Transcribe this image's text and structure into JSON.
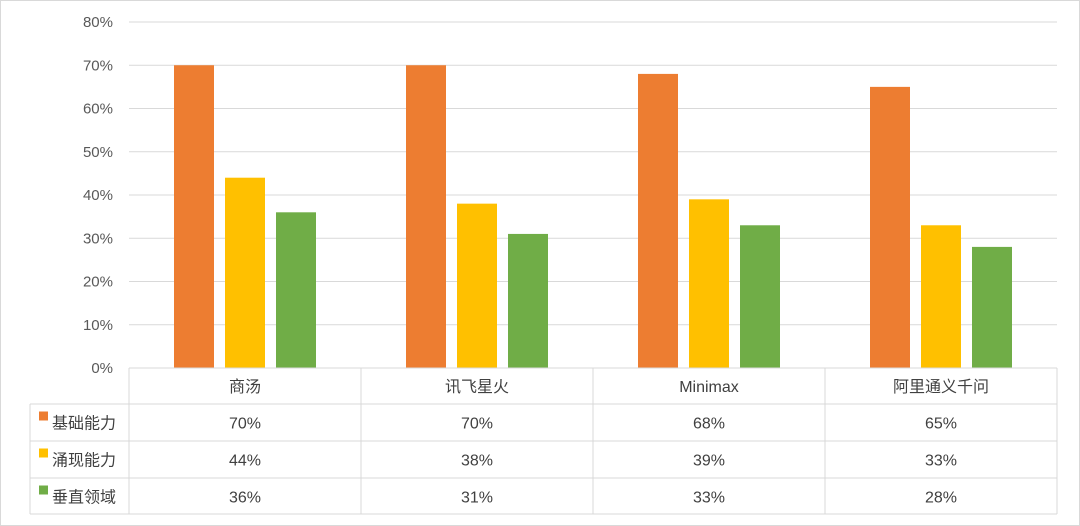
{
  "chart_data": {
    "type": "bar",
    "categories": [
      "商汤",
      "讯飞星火",
      "Minimax",
      "阿里通义千问"
    ],
    "series": [
      {
        "name": "基础能力",
        "values": [
          70,
          70,
          68,
          65
        ],
        "labels": [
          "70%",
          "70%",
          "68%",
          "65%"
        ],
        "color": "#ED7D31"
      },
      {
        "name": "涌现能力",
        "values": [
          44,
          38,
          39,
          33
        ],
        "labels": [
          "44%",
          "38%",
          "39%",
          "33%"
        ],
        "color": "#FFC000"
      },
      {
        "name": "垂直领域",
        "values": [
          36,
          31,
          33,
          28
        ],
        "labels": [
          "36%",
          "31%",
          "33%",
          "28%"
        ],
        "color": "#70AD47"
      }
    ],
    "ylim": [
      0,
      80
    ],
    "yticks": [
      "0%",
      "10%",
      "20%",
      "30%",
      "40%",
      "50%",
      "60%",
      "70%",
      "80%"
    ],
    "grid": true,
    "legend": "data-table-left",
    "data_table": true
  }
}
